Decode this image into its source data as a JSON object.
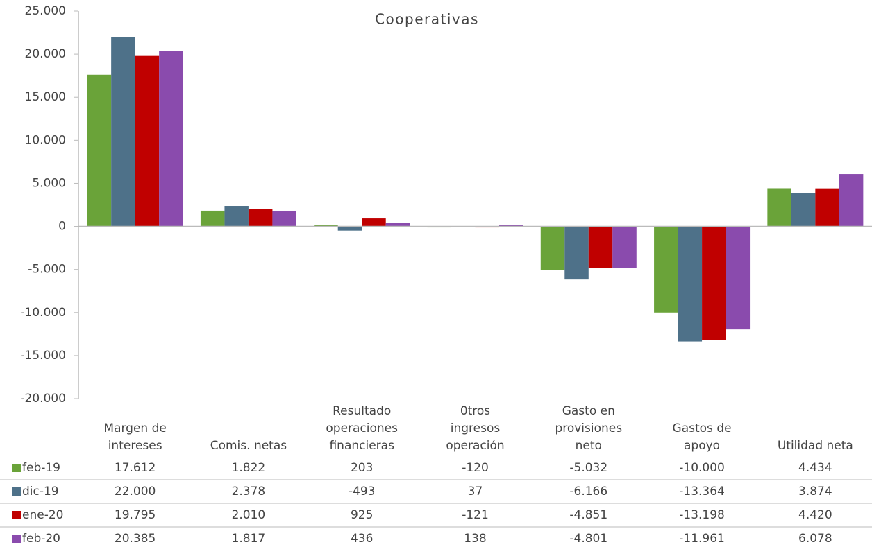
{
  "chart_data": {
    "type": "bar",
    "title": "Cooperativas",
    "categories": [
      "Margen de intereses",
      "Comis. netas",
      "Resultado operaciones financieras",
      "0tros ingresos operación",
      "Gasto en provisiones neto",
      "Gastos de apoyo",
      "Utilidad neta"
    ],
    "series": [
      {
        "name": "feb-19",
        "color": "#6aa339",
        "values": [
          17612,
          1822,
          203,
          -120,
          -5032,
          -10000,
          4434
        ],
        "value_labels": [
          "17.612",
          "1.822",
          "203",
          "-120",
          "-5.032",
          "-10.000",
          "4.434"
        ]
      },
      {
        "name": "dic-19",
        "color": "#4e7189",
        "values": [
          22000,
          2378,
          -493,
          37,
          -6166,
          -13364,
          3874
        ],
        "value_labels": [
          "22.000",
          "2.378",
          "-493",
          "37",
          "-6.166",
          "-13.364",
          "3.874"
        ]
      },
      {
        "name": "ene-20",
        "color": "#c00000",
        "values": [
          19795,
          2010,
          925,
          -121,
          -4851,
          -13198,
          4420
        ],
        "value_labels": [
          "19.795",
          "2.010",
          "925",
          "-121",
          "-4.851",
          "-13.198",
          "4.420"
        ]
      },
      {
        "name": "feb-20",
        "color": "#8a4bad",
        "values": [
          20385,
          1817,
          436,
          138,
          -4801,
          -11961,
          6078
        ],
        "value_labels": [
          "20.385",
          "1.817",
          "436",
          "138",
          "-4.801",
          "-11.961",
          "6.078"
        ]
      }
    ],
    "ylim": [
      -20000,
      25000
    ],
    "yticks": [
      {
        "value": -20000,
        "label": "-20.000"
      },
      {
        "value": -15000,
        "label": "-15.000"
      },
      {
        "value": -10000,
        "label": "-10.000"
      },
      {
        "value": -5000,
        "label": "-5.000"
      },
      0,
      {
        "value": 5000,
        "label": "5.000"
      },
      {
        "value": 10000,
        "label": "10.000"
      },
      {
        "value": 15000,
        "label": "15.000"
      },
      {
        "value": 20000,
        "label": "20.000"
      },
      {
        "value": 25000,
        "label": "25.000"
      }
    ],
    "grid": false
  }
}
